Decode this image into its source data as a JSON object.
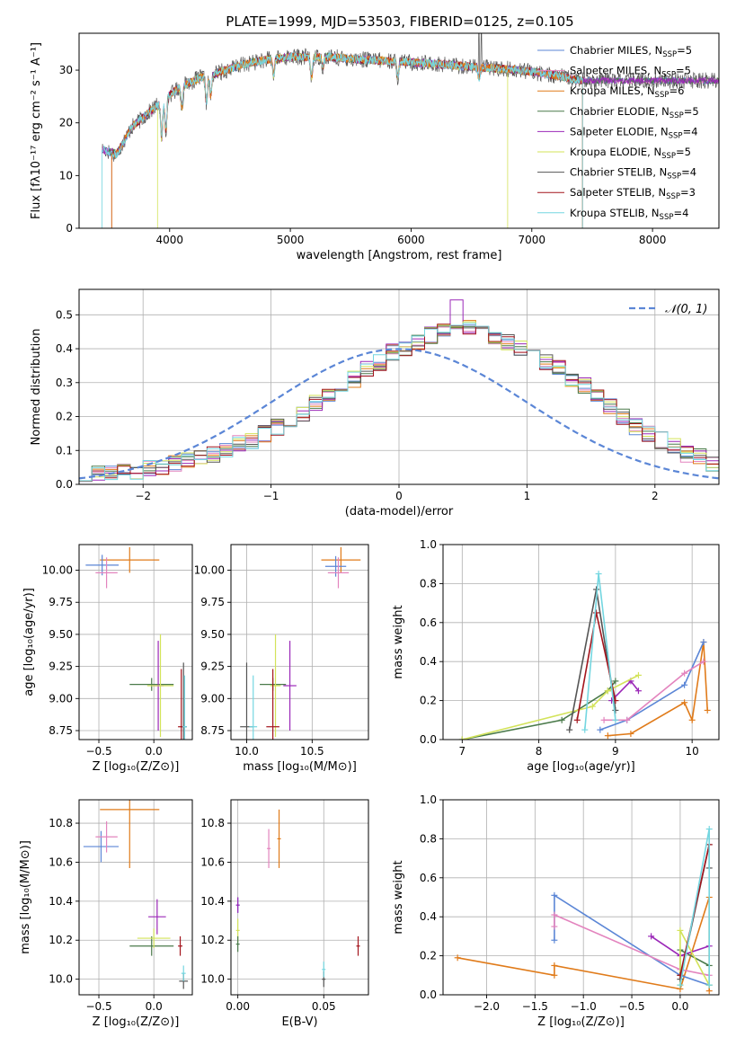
{
  "figure": {
    "title": "PLATE=1999, MJD=53503, FIBERID=0125, z=0.105"
  },
  "colors": {
    "Chabrier MILES": "#5b86d6",
    "Salpeter MILES": "#e384be",
    "Kroupa MILES": "#e07b1a",
    "Chabrier ELODIE": "#4a7a4a",
    "Salpeter ELODIE": "#9b28b8",
    "Kroupa ELODIE": "#d3e35a",
    "Chabrier STELIB": "#555555",
    "Salpeter STELIB": "#a3141c",
    "Kroupa STELIB": "#74d6e0"
  },
  "chart_data": [
    {
      "id": "spectrum",
      "type": "line",
      "title": "PLATE=1999, MJD=53503, FIBERID=0125, z=0.105",
      "xlabel": "wavelength [Angstrom, rest frame]",
      "ylabel": "Flux [fλ10⁻¹⁷ erg cm⁻² s⁻¹ A⁻¹]",
      "xlim": [
        3250,
        8550
      ],
      "ylim": [
        0,
        37
      ],
      "xticks": [
        4000,
        5000,
        6000,
        7000,
        8000
      ],
      "yticks": [
        0,
        10,
        20,
        30
      ],
      "legend_position": "top-right",
      "legend": [
        {
          "name": "Chabrier MILES, N_SSP=5",
          "label": "Chabrier MILES, N",
          "sub": "SSP",
          "tail": "=5"
        },
        {
          "name": "Salpeter MILES, N_SSP=5",
          "label": "Salpeter MILES, N",
          "sub": "SSP",
          "tail": "=5"
        },
        {
          "name": "Kroupa MILES, N_SSP=6",
          "label": "Kroupa MILES, N",
          "sub": "SSP",
          "tail": "=6"
        },
        {
          "name": "Chabrier ELODIE, N_SSP=5",
          "label": "Chabrier ELODIE, N",
          "sub": "SSP",
          "tail": "=5"
        },
        {
          "name": "Salpeter ELODIE, N_SSP=4",
          "label": "Salpeter ELODIE, N",
          "sub": "SSP",
          "tail": "=4"
        },
        {
          "name": "Kroupa ELODIE, N_SSP=5",
          "label": "Kroupa ELODIE, N",
          "sub": "SSP",
          "tail": "=5"
        },
        {
          "name": "Chabrier STELIB, N_SSP=4",
          "label": "Chabrier STELIB, N",
          "sub": "SSP",
          "tail": "=4"
        },
        {
          "name": "Salpeter STELIB, N_SSP=3",
          "label": "Salpeter STELIB, N",
          "sub": "SSP",
          "tail": "=3"
        },
        {
          "name": "Kroupa STELIB, N_SSP=4",
          "label": "Kroupa STELIB, N",
          "sub": "SSP",
          "tail": "=4"
        }
      ],
      "continuum_knots": [
        [
          3440,
          15
        ],
        [
          3560,
          14
        ],
        [
          3680,
          19
        ],
        [
          3780,
          21
        ],
        [
          3880,
          23
        ],
        [
          3980,
          25
        ],
        [
          4100,
          27
        ],
        [
          4250,
          28.5
        ],
        [
          4400,
          29.5
        ],
        [
          4600,
          31
        ],
        [
          4800,
          32
        ],
        [
          5000,
          32.5
        ],
        [
          5300,
          32.5
        ],
        [
          5600,
          32
        ],
        [
          6000,
          31.5
        ],
        [
          6300,
          31
        ],
        [
          6600,
          30.5
        ],
        [
          6900,
          30
        ],
        [
          7200,
          29
        ],
        [
          7400,
          28
        ]
      ],
      "absorption_lines": [
        [
          3934,
          7
        ],
        [
          3969,
          6
        ],
        [
          4102,
          4
        ],
        [
          4305,
          5
        ],
        [
          4340,
          4
        ],
        [
          4861,
          3
        ],
        [
          5175,
          4
        ],
        [
          5270,
          2
        ],
        [
          5890,
          3
        ],
        [
          6563,
          2
        ]
      ],
      "emission_spikes": [
        [
          6563,
          37
        ],
        [
          6583,
          37
        ]
      ],
      "template_dropoffs": [
        {
          "series": "Kroupa ELODIE",
          "start": 3900,
          "end": 6800
        },
        {
          "series": "Salpeter STELIB",
          "start": 3520,
          "end": 7420
        },
        {
          "series": "Kroupa MILES",
          "start": 3520,
          "end": 7420
        },
        {
          "series": "Kroupa STELIB",
          "start": 3440,
          "end": 7420
        }
      ]
    },
    {
      "id": "residuals",
      "type": "line",
      "xlabel": "(data-model)/error",
      "ylabel": "Normed distribution",
      "xlim": [
        -2.5,
        2.5
      ],
      "ylim": [
        0,
        0.575
      ],
      "xticks": [
        -2,
        -1,
        0,
        1,
        2
      ],
      "yticks": [
        0.0,
        0.1,
        0.2,
        0.3,
        0.4,
        0.5
      ],
      "legend_position": "top-right",
      "gaussian_label": "𝒩(0, 1)",
      "hist_bin_width": 0.1,
      "hist_series": [
        "Chabrier MILES",
        "Salpeter MILES",
        "Kroupa MILES",
        "Chabrier ELODIE",
        "Salpeter ELODIE",
        "Kroupa ELODIE",
        "Chabrier STELIB",
        "Salpeter STELIB",
        "Kroupa STELIB"
      ],
      "hist_shape": [
        0.02,
        0.03,
        0.03,
        0.04,
        0.04,
        0.05,
        0.05,
        0.06,
        0.07,
        0.08,
        0.09,
        0.1,
        0.12,
        0.13,
        0.15,
        0.17,
        0.19,
        0.21,
        0.24,
        0.26,
        0.29,
        0.31,
        0.34,
        0.36,
        0.39,
        0.4,
        0.42,
        0.44,
        0.45,
        0.46,
        0.46,
        0.45,
        0.43,
        0.42,
        0.4,
        0.38,
        0.36,
        0.34,
        0.31,
        0.29,
        0.26,
        0.23,
        0.2,
        0.17,
        0.15,
        0.13,
        0.11,
        0.09,
        0.08,
        0.06
      ]
    },
    {
      "id": "age-vs-Z",
      "type": "scatter",
      "xlabel": "Z [log₁₀(Z/Z⊙)]",
      "ylabel": "age  [log₁₀(age/yr)]",
      "xlim": [
        -0.68,
        0.35
      ],
      "ylim": [
        8.68,
        10.2
      ],
      "xticks": [
        -0.5,
        0.0
      ],
      "yticks": [
        8.75,
        9.0,
        9.25,
        9.5,
        9.75,
        10.0
      ],
      "points": [
        {
          "series": "Kroupa MILES",
          "x": -0.22,
          "xerr": 0.27,
          "y": 10.08,
          "yerr": 0.1
        },
        {
          "series": "Chabrier MILES",
          "x": -0.47,
          "xerr": 0.15,
          "y": 10.04,
          "yerr": 0.08
        },
        {
          "series": "Salpeter MILES",
          "x": -0.43,
          "xerr": 0.1,
          "y": 9.98,
          "yerr": 0.12
        },
        {
          "series": "Chabrier ELODIE",
          "x": -0.02,
          "xerr": 0.2,
          "y": 9.11,
          "yerr": 0.05
        },
        {
          "series": "Salpeter ELODIE",
          "x": 0.04,
          "xerr": 0.05,
          "y": 9.1,
          "yerr": 0.35
        },
        {
          "series": "Kroupa ELODIE",
          "x": 0.06,
          "xerr": 0.12,
          "y": 9.1,
          "yerr": 0.4
        },
        {
          "series": "Chabrier STELIB",
          "x": 0.27,
          "xerr": 0.03,
          "y": 8.78,
          "yerr": 0.5
        },
        {
          "series": "Salpeter STELIB",
          "x": 0.25,
          "xerr": 0.03,
          "y": 8.78,
          "yerr": 0.45
        },
        {
          "series": "Kroupa STELIB",
          "x": 0.28,
          "xerr": 0.02,
          "y": 8.78,
          "yerr": 0.4
        }
      ]
    },
    {
      "id": "age-vs-mass",
      "type": "scatter",
      "xlabel": "mass [log₁₀(M/M⊙)]",
      "xlim": [
        9.88,
        10.93
      ],
      "ylim": [
        8.68,
        10.2
      ],
      "xticks": [
        10.0,
        10.5
      ],
      "yticks": [
        8.75,
        9.0,
        9.25,
        9.5,
        9.75,
        10.0
      ],
      "points": [
        {
          "series": "Kroupa MILES",
          "x": 10.72,
          "xerr": 0.15,
          "y": 10.08,
          "yerr": 0.1
        },
        {
          "series": "Chabrier MILES",
          "x": 10.68,
          "xerr": 0.08,
          "y": 10.03,
          "yerr": 0.08
        },
        {
          "series": "Salpeter MILES",
          "x": 10.7,
          "xerr": 0.08,
          "y": 9.98,
          "yerr": 0.12
        },
        {
          "series": "Chabrier ELODIE",
          "x": 10.2,
          "xerr": 0.1,
          "y": 9.11,
          "yerr": 0.05
        },
        {
          "series": "Salpeter ELODIE",
          "x": 10.33,
          "xerr": 0.05,
          "y": 9.1,
          "yerr": 0.35
        },
        {
          "series": "Kroupa ELODIE",
          "x": 10.22,
          "xerr": 0.04,
          "y": 9.1,
          "yerr": 0.4
        },
        {
          "series": "Chabrier STELIB",
          "x": 10.0,
          "xerr": 0.05,
          "y": 8.78,
          "yerr": 0.5
        },
        {
          "series": "Salpeter STELIB",
          "x": 10.2,
          "xerr": 0.05,
          "y": 8.78,
          "yerr": 0.45
        },
        {
          "series": "Kroupa STELIB",
          "x": 10.05,
          "xerr": 0.03,
          "y": 8.78,
          "yerr": 0.4
        }
      ]
    },
    {
      "id": "weight-vs-age",
      "type": "line",
      "xlabel": "age  [log₁₀(age/yr)]",
      "ylabel": "mass weight",
      "xlim": [
        6.75,
        10.35
      ],
      "ylim": [
        0,
        1.0
      ],
      "xticks": [
        7,
        8,
        9,
        10
      ],
      "yticks": [
        0.0,
        0.2,
        0.4,
        0.6,
        0.8,
        1.0
      ],
      "series": [
        {
          "name": "Kroupa MILES",
          "x": [
            8.9,
            9.2,
            9.9,
            10.0,
            10.15,
            10.2
          ],
          "y": [
            0.02,
            0.03,
            0.19,
            0.1,
            0.5,
            0.15
          ]
        },
        {
          "name": "Chabrier MILES",
          "x": [
            8.8,
            9.15,
            9.9,
            10.15
          ],
          "y": [
            0.05,
            0.1,
            0.28,
            0.5
          ]
        },
        {
          "name": "Salpeter MILES",
          "x": [
            8.85,
            9.15,
            9.9,
            10.15
          ],
          "y": [
            0.1,
            0.1,
            0.34,
            0.4
          ]
        },
        {
          "name": "Chabrier ELODIE",
          "x": [
            7.0,
            8.3,
            8.9,
            9.0
          ],
          "y": [
            0.0,
            0.1,
            0.25,
            0.3
          ]
        },
        {
          "name": "Salpeter ELODIE",
          "x": [
            8.95,
            9.2,
            9.3
          ],
          "y": [
            0.2,
            0.3,
            0.25
          ]
        },
        {
          "name": "Kroupa ELODIE",
          "x": [
            7.0,
            8.7,
            8.9,
            9.3
          ],
          "y": [
            0.0,
            0.17,
            0.25,
            0.33
          ]
        },
        {
          "name": "Chabrier STELIB",
          "x": [
            8.4,
            8.75,
            9.0
          ],
          "y": [
            0.05,
            0.77,
            0.15
          ]
        },
        {
          "name": "Salpeter STELIB",
          "x": [
            8.5,
            8.75,
            9.0
          ],
          "y": [
            0.1,
            0.65,
            0.2
          ]
        },
        {
          "name": "Kroupa STELIB",
          "x": [
            8.6,
            8.78,
            9.0
          ],
          "y": [
            0.05,
            0.85,
            0.1
          ]
        }
      ]
    },
    {
      "id": "mass-vs-Z",
      "type": "scatter",
      "xlabel": "Z [log₁₀(Z/Z⊙)]",
      "ylabel": "mass [log₁₀(M/M⊙)]",
      "xlim": [
        -0.68,
        0.35
      ],
      "ylim": [
        9.92,
        10.92
      ],
      "xticks": [
        -0.5,
        0.0
      ],
      "yticks": [
        10.0,
        10.2,
        10.4,
        10.6,
        10.8
      ],
      "points": [
        {
          "series": "Kroupa MILES",
          "x": -0.22,
          "xerr": 0.27,
          "y": 10.87,
          "yerr": 0.3
        },
        {
          "series": "Chabrier MILES",
          "x": -0.48,
          "xerr": 0.16,
          "y": 10.68,
          "yerr": 0.08
        },
        {
          "series": "Salpeter MILES",
          "x": -0.43,
          "xerr": 0.1,
          "y": 10.73,
          "yerr": 0.08
        },
        {
          "series": "Chabrier ELODIE",
          "x": -0.02,
          "xerr": 0.2,
          "y": 10.17,
          "yerr": 0.05
        },
        {
          "series": "Salpeter ELODIE",
          "x": 0.03,
          "xerr": 0.08,
          "y": 10.32,
          "yerr": 0.09
        },
        {
          "series": "Kroupa ELODIE",
          "x": 0.0,
          "xerr": 0.15,
          "y": 10.21,
          "yerr": 0.05
        },
        {
          "series": "Chabrier STELIB",
          "x": 0.27,
          "xerr": 0.04,
          "y": 9.99,
          "yerr": 0.04
        },
        {
          "series": "Salpeter STELIB",
          "x": 0.24,
          "xerr": 0.02,
          "y": 10.17,
          "yerr": 0.05
        },
        {
          "series": "Kroupa STELIB",
          "x": 0.27,
          "xerr": 0.02,
          "y": 10.03,
          "yerr": 0.04
        }
      ]
    },
    {
      "id": "mass-vs-EBV",
      "type": "scatter",
      "xlabel": "E(B-V)",
      "xlim": [
        -0.004,
        0.076
      ],
      "ylim": [
        9.92,
        10.92
      ],
      "xticks": [
        0.0,
        0.05
      ],
      "yticks": [
        10.0,
        10.2,
        10.4,
        10.6,
        10.8
      ],
      "points": [
        {
          "series": "Kroupa MILES",
          "x": 0.024,
          "y": 10.72,
          "yerr": 0.15
        },
        {
          "series": "Salpeter MILES",
          "x": 0.018,
          "y": 10.67,
          "yerr": 0.1
        },
        {
          "series": "Chabrier MILES",
          "x": 0.0,
          "y": 10.38,
          "yerr": 0.04
        },
        {
          "series": "Salpeter ELODIE",
          "x": 0.0,
          "y": 10.38,
          "yerr": 0.04
        },
        {
          "series": "Kroupa ELODIE",
          "x": 0.0,
          "y": 10.25,
          "yerr": 0.06
        },
        {
          "series": "Chabrier ELODIE",
          "x": 0.0,
          "y": 10.18,
          "yerr": 0.04
        },
        {
          "series": "Chabrier STELIB",
          "x": 0.05,
          "y": 10.0,
          "yerr": 0.04
        },
        {
          "series": "Kroupa STELIB",
          "x": 0.05,
          "y": 10.05,
          "yerr": 0.04
        },
        {
          "series": "Salpeter STELIB",
          "x": 0.07,
          "y": 10.17,
          "yerr": 0.05
        }
      ]
    },
    {
      "id": "weight-vs-Z",
      "type": "line",
      "xlabel": "Z [log₁₀(Z/Z⊙)]",
      "ylabel": "mass weight",
      "xlim": [
        -2.45,
        0.4
      ],
      "ylim": [
        0,
        1.0
      ],
      "xticks": [
        -2.0,
        -1.5,
        -1.0,
        -0.5,
        0.0
      ],
      "yticks": [
        0.0,
        0.2,
        0.4,
        0.6,
        0.8,
        1.0
      ],
      "series": [
        {
          "name": "Kroupa MILES",
          "x": [
            -2.3,
            -1.3,
            -1.3,
            0.0,
            0.3,
            0.3
          ],
          "y": [
            0.19,
            0.1,
            0.15,
            0.03,
            0.5,
            0.02
          ]
        },
        {
          "name": "Chabrier MILES",
          "x": [
            -1.3,
            -1.3,
            0.0,
            0.3
          ],
          "y": [
            0.28,
            0.51,
            0.1,
            0.05
          ]
        },
        {
          "name": "Salpeter MILES",
          "x": [
            -1.3,
            -1.3,
            0.0,
            0.3
          ],
          "y": [
            0.35,
            0.41,
            0.13,
            0.1
          ]
        },
        {
          "name": "Chabrier ELODIE",
          "x": [
            0.0,
            0.0,
            0.3
          ],
          "y": [
            0.1,
            0.23,
            0.15
          ]
        },
        {
          "name": "Salpeter ELODIE",
          "x": [
            -0.3,
            0.0,
            0.3
          ],
          "y": [
            0.3,
            0.2,
            0.25
          ]
        },
        {
          "name": "Kroupa ELODIE",
          "x": [
            0.0,
            0.0,
            0.3
          ],
          "y": [
            0.05,
            0.33,
            0.05
          ]
        },
        {
          "name": "Chabrier STELIB",
          "x": [
            0.0,
            0.3,
            0.3
          ],
          "y": [
            0.08,
            0.77,
            0.65
          ]
        },
        {
          "name": "Salpeter STELIB",
          "x": [
            0.0,
            0.3
          ],
          "y": [
            0.1,
            0.77
          ]
        },
        {
          "name": "Kroupa STELIB",
          "x": [
            0.0,
            0.3,
            0.3
          ],
          "y": [
            0.05,
            0.85,
            0.05
          ]
        }
      ]
    }
  ]
}
